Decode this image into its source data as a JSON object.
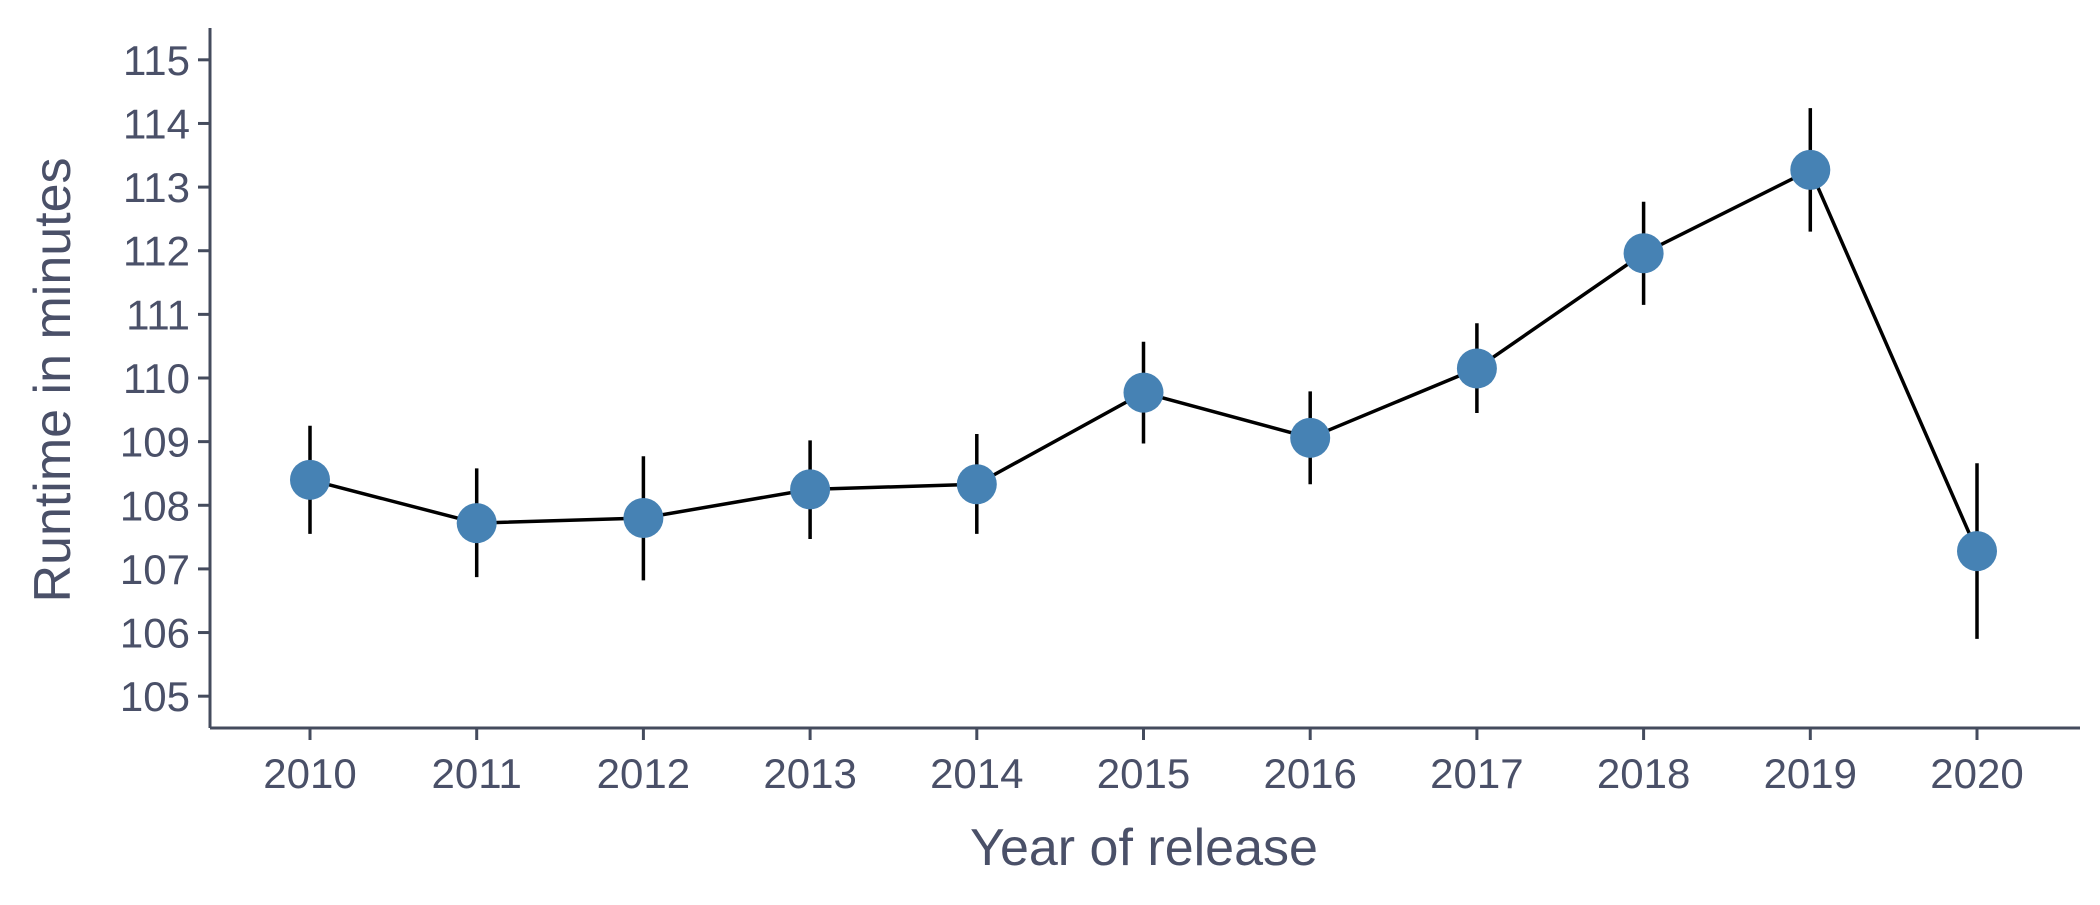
{
  "chart_data": {
    "type": "line",
    "title": "",
    "xlabel": "Year of release",
    "ylabel": "Runtime in minutes",
    "categories": [
      "2010",
      "2011",
      "2012",
      "2013",
      "2014",
      "2015",
      "2016",
      "2017",
      "2018",
      "2019",
      "2020"
    ],
    "yticks": [
      105,
      106,
      107,
      108,
      109,
      110,
      111,
      112,
      113,
      114,
      115
    ],
    "ylim": [
      104.5,
      115.5
    ],
    "grid": false,
    "legend": "none",
    "series": [
      {
        "values": [
          108.4,
          107.72,
          107.8,
          108.25,
          108.33,
          109.77,
          109.06,
          110.15,
          111.96,
          113.27,
          107.28
        ],
        "error_low": [
          107.55,
          106.87,
          106.82,
          107.47,
          107.55,
          108.97,
          108.33,
          109.45,
          111.15,
          112.3,
          105.9
        ],
        "error_high": [
          109.25,
          108.58,
          108.77,
          109.02,
          109.12,
          110.57,
          109.79,
          110.86,
          112.77,
          114.24,
          108.66
        ]
      }
    ],
    "colors": {
      "point": "#4682B4",
      "line": "#000000",
      "errorbar": "#000000",
      "axis": "#444b5d",
      "text": "#4a5068"
    }
  }
}
